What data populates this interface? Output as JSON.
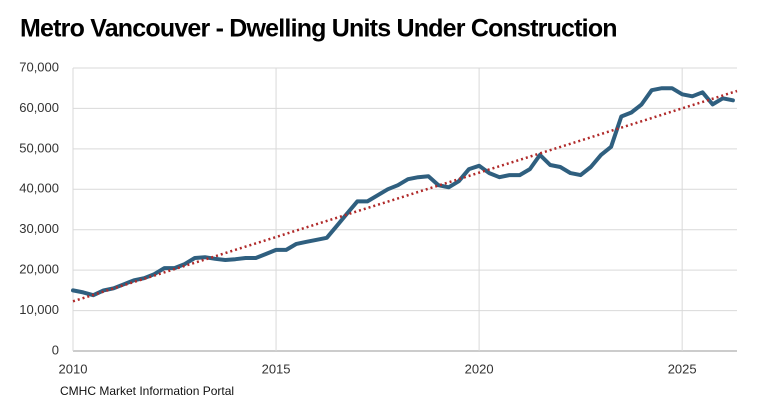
{
  "chart_data": {
    "type": "line",
    "title": "Metro Vancouver - Dwelling Units Under Construction",
    "source": "CMHC Market Information Portal",
    "xlim": [
      2010,
      2026.35
    ],
    "xticks": [
      2010,
      2015,
      2020,
      2025
    ],
    "ylim": [
      0,
      70000
    ],
    "yticks": [
      0,
      {
        "value": 10000,
        "label": "10,000"
      },
      {
        "value": 20000,
        "label": "20,000"
      },
      {
        "value": 30000,
        "label": "30,000"
      },
      {
        "value": 40000,
        "label": "40,000"
      },
      {
        "value": 50000,
        "label": "50,000"
      },
      {
        "value": 60000,
        "label": "60,000"
      },
      {
        "value": 70000,
        "label": "70,000"
      }
    ],
    "grid": true,
    "series": [
      {
        "color": "#2f5f7f",
        "x": [
          2010,
          2010.25,
          2010.5,
          2010.75,
          2011,
          2011.25,
          2011.5,
          2011.75,
          2012,
          2012.25,
          2012.5,
          2012.75,
          2013,
          2013.25,
          2013.5,
          2013.75,
          2014,
          2014.25,
          2014.5,
          2014.75,
          2015,
          2015.25,
          2015.5,
          2015.75,
          2016,
          2016.25,
          2016.5,
          2016.75,
          2017,
          2017.25,
          2017.5,
          2017.75,
          2018,
          2018.25,
          2018.5,
          2018.75,
          2019,
          2019.25,
          2019.5,
          2019.75,
          2020,
          2020.25,
          2020.5,
          2020.75,
          2021,
          2021.25,
          2021.5,
          2021.75,
          2022,
          2022.25,
          2022.5,
          2022.75,
          2023,
          2023.25,
          2023.5,
          2023.75,
          2024,
          2024.25,
          2024.5,
          2024.75,
          2025,
          2025.25,
          2025.5,
          2025.75,
          2026,
          2026.25
        ],
        "values": [
          15000,
          14500,
          13800,
          15000,
          15500,
          16500,
          17500,
          18000,
          19000,
          20500,
          20500,
          21500,
          23000,
          23200,
          22800,
          22500,
          22700,
          23000,
          23000,
          24000,
          25000,
          25000,
          26500,
          27000,
          27500,
          28000,
          31000,
          34000,
          37000,
          37000,
          38500,
          40000,
          41000,
          42500,
          43000,
          43200,
          41000,
          40500,
          42000,
          45000,
          45800,
          44000,
          43000,
          43500,
          43500,
          45000,
          48500,
          46000,
          45500,
          44000,
          43500,
          45500,
          48500,
          50500,
          58000,
          59000,
          61000,
          64500,
          65000,
          65000,
          63500,
          63000,
          64000,
          61000,
          62500,
          62000
        ]
      }
    ],
    "trendline": {
      "color": "#b02a2a",
      "x": [
        2010,
        2026.35
      ],
      "values": [
        12300,
        64300
      ]
    }
  }
}
